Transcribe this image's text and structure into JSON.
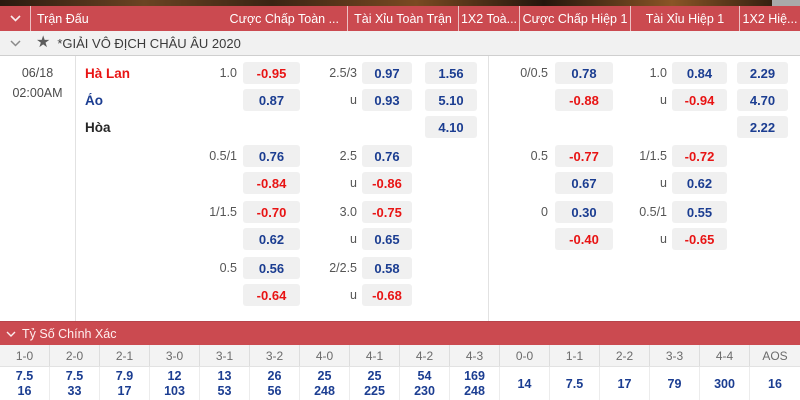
{
  "top_bar": {
    "match_label": "Trận Đấu",
    "columns": [
      "Cược Chấp Toàn ...",
      "Tài Xỉu Toàn Trận",
      "1X2 Toà...",
      "Cược Chấp Hiệp 1",
      "Tài Xỉu Hiệp 1",
      "1X2 Hiệ..."
    ]
  },
  "league_row": {
    "title": "*GIẢI VÔ ĐỊCH CHÂU ÂU 2020",
    "star_icon": "star-icon"
  },
  "match": {
    "date": "06/18",
    "time": "02:00AM"
  },
  "odds_blocks": [
    {
      "rows": [
        {
          "team": {
            "text": "Hà Lan",
            "tone": "red"
          },
          "left": {
            "lineH": "1.0",
            "btnH": {
              "v": "-0.95",
              "tone": "red"
            },
            "lineO": "2.5/3",
            "btnO": {
              "v": "0.97",
              "tone": "blue"
            },
            "x12": {
              "v": "1.56",
              "tone": "blue"
            }
          },
          "right": {
            "lineH": "0/0.5",
            "btnH": {
              "v": "0.78",
              "tone": "blue"
            },
            "lineO": "1.0",
            "btnO": {
              "v": "0.84",
              "tone": "blue"
            },
            "x12": {
              "v": "2.29",
              "tone": "blue"
            }
          }
        },
        {
          "team": {
            "text": "Áo",
            "tone": "blue"
          },
          "left": {
            "btnH": {
              "v": "0.87",
              "tone": "blue"
            },
            "lineO": "u",
            "btnO": {
              "v": "0.93",
              "tone": "blue"
            },
            "x12": {
              "v": "5.10",
              "tone": "blue"
            }
          },
          "right": {
            "btnH": {
              "v": "-0.88",
              "tone": "red"
            },
            "lineO": "u",
            "btnO": {
              "v": "-0.94",
              "tone": "red"
            },
            "x12": {
              "v": "4.70",
              "tone": "blue"
            }
          }
        },
        {
          "team": {
            "text": "Hòa",
            "tone": "dark"
          },
          "left": {
            "x12": {
              "v": "4.10",
              "tone": "blue"
            }
          },
          "right": {
            "x12": {
              "v": "2.22",
              "tone": "blue"
            }
          }
        }
      ]
    },
    {
      "rows": [
        {
          "left": {
            "lineH": "0.5/1",
            "btnH": {
              "v": "0.76",
              "tone": "blue"
            },
            "lineO": "2.5",
            "btnO": {
              "v": "0.76",
              "tone": "blue"
            }
          },
          "right": {
            "lineH": "0.5",
            "btnH": {
              "v": "-0.77",
              "tone": "red"
            },
            "lineO": "1/1.5",
            "btnO": {
              "v": "-0.72",
              "tone": "red"
            }
          }
        },
        {
          "left": {
            "btnH": {
              "v": "-0.84",
              "tone": "red"
            },
            "lineO": "u",
            "btnO": {
              "v": "-0.86",
              "tone": "red"
            }
          },
          "right": {
            "btnH": {
              "v": "0.67",
              "tone": "blue"
            },
            "lineO": "u",
            "btnO": {
              "v": "0.62",
              "tone": "blue"
            }
          }
        }
      ]
    },
    {
      "rows": [
        {
          "left": {
            "lineH": "1/1.5",
            "btnH": {
              "v": "-0.70",
              "tone": "red"
            },
            "lineO": "3.0",
            "btnO": {
              "v": "-0.75",
              "tone": "red"
            }
          },
          "right": {
            "lineH": "0",
            "btnH": {
              "v": "0.30",
              "tone": "blue"
            },
            "lineO": "0.5/1",
            "btnO": {
              "v": "0.55",
              "tone": "blue"
            }
          }
        },
        {
          "left": {
            "btnH": {
              "v": "0.62",
              "tone": "blue"
            },
            "lineO": "u",
            "btnO": {
              "v": "0.65",
              "tone": "blue"
            }
          },
          "right": {
            "btnH": {
              "v": "-0.40",
              "tone": "red"
            },
            "lineO": "u",
            "btnO": {
              "v": "-0.65",
              "tone": "red"
            }
          }
        }
      ]
    },
    {
      "rows": [
        {
          "left": {
            "lineH": "0.5",
            "btnH": {
              "v": "0.56",
              "tone": "blue"
            },
            "lineO": "2/2.5",
            "btnO": {
              "v": "0.58",
              "tone": "blue"
            }
          },
          "right": {}
        },
        {
          "left": {
            "btnH": {
              "v": "-0.64",
              "tone": "red"
            },
            "lineO": "u",
            "btnO": {
              "v": "-0.68",
              "tone": "red"
            }
          },
          "right": {}
        }
      ]
    }
  ],
  "score_section": {
    "title": "Tỷ Số Chính Xác",
    "columns": [
      {
        "label": "1-0",
        "values": [
          "7.5",
          "16"
        ]
      },
      {
        "label": "2-0",
        "values": [
          "7.5",
          "33"
        ]
      },
      {
        "label": "2-1",
        "values": [
          "7.9",
          "17"
        ]
      },
      {
        "label": "3-0",
        "values": [
          "12",
          "103"
        ]
      },
      {
        "label": "3-1",
        "values": [
          "13",
          "53"
        ]
      },
      {
        "label": "3-2",
        "values": [
          "26",
          "56"
        ]
      },
      {
        "label": "4-0",
        "values": [
          "25",
          "248"
        ]
      },
      {
        "label": "4-1",
        "values": [
          "25",
          "225"
        ]
      },
      {
        "label": "4-2",
        "values": [
          "54",
          "230"
        ]
      },
      {
        "label": "4-3",
        "values": [
          "169",
          "248"
        ]
      },
      {
        "label": "0-0",
        "values": [
          "14"
        ]
      },
      {
        "label": "1-1",
        "values": [
          "7.5"
        ]
      },
      {
        "label": "2-2",
        "values": [
          "17"
        ]
      },
      {
        "label": "3-3",
        "values": [
          "79"
        ]
      },
      {
        "label": "4-4",
        "values": [
          "300"
        ]
      },
      {
        "label": "AOS",
        "values": [
          "16"
        ]
      }
    ]
  },
  "colors": {
    "accent_red": "#cb4a50",
    "odds_blue": "#1b3d91",
    "odds_red": "#e81414",
    "button_bg": "#f0f0f0"
  }
}
